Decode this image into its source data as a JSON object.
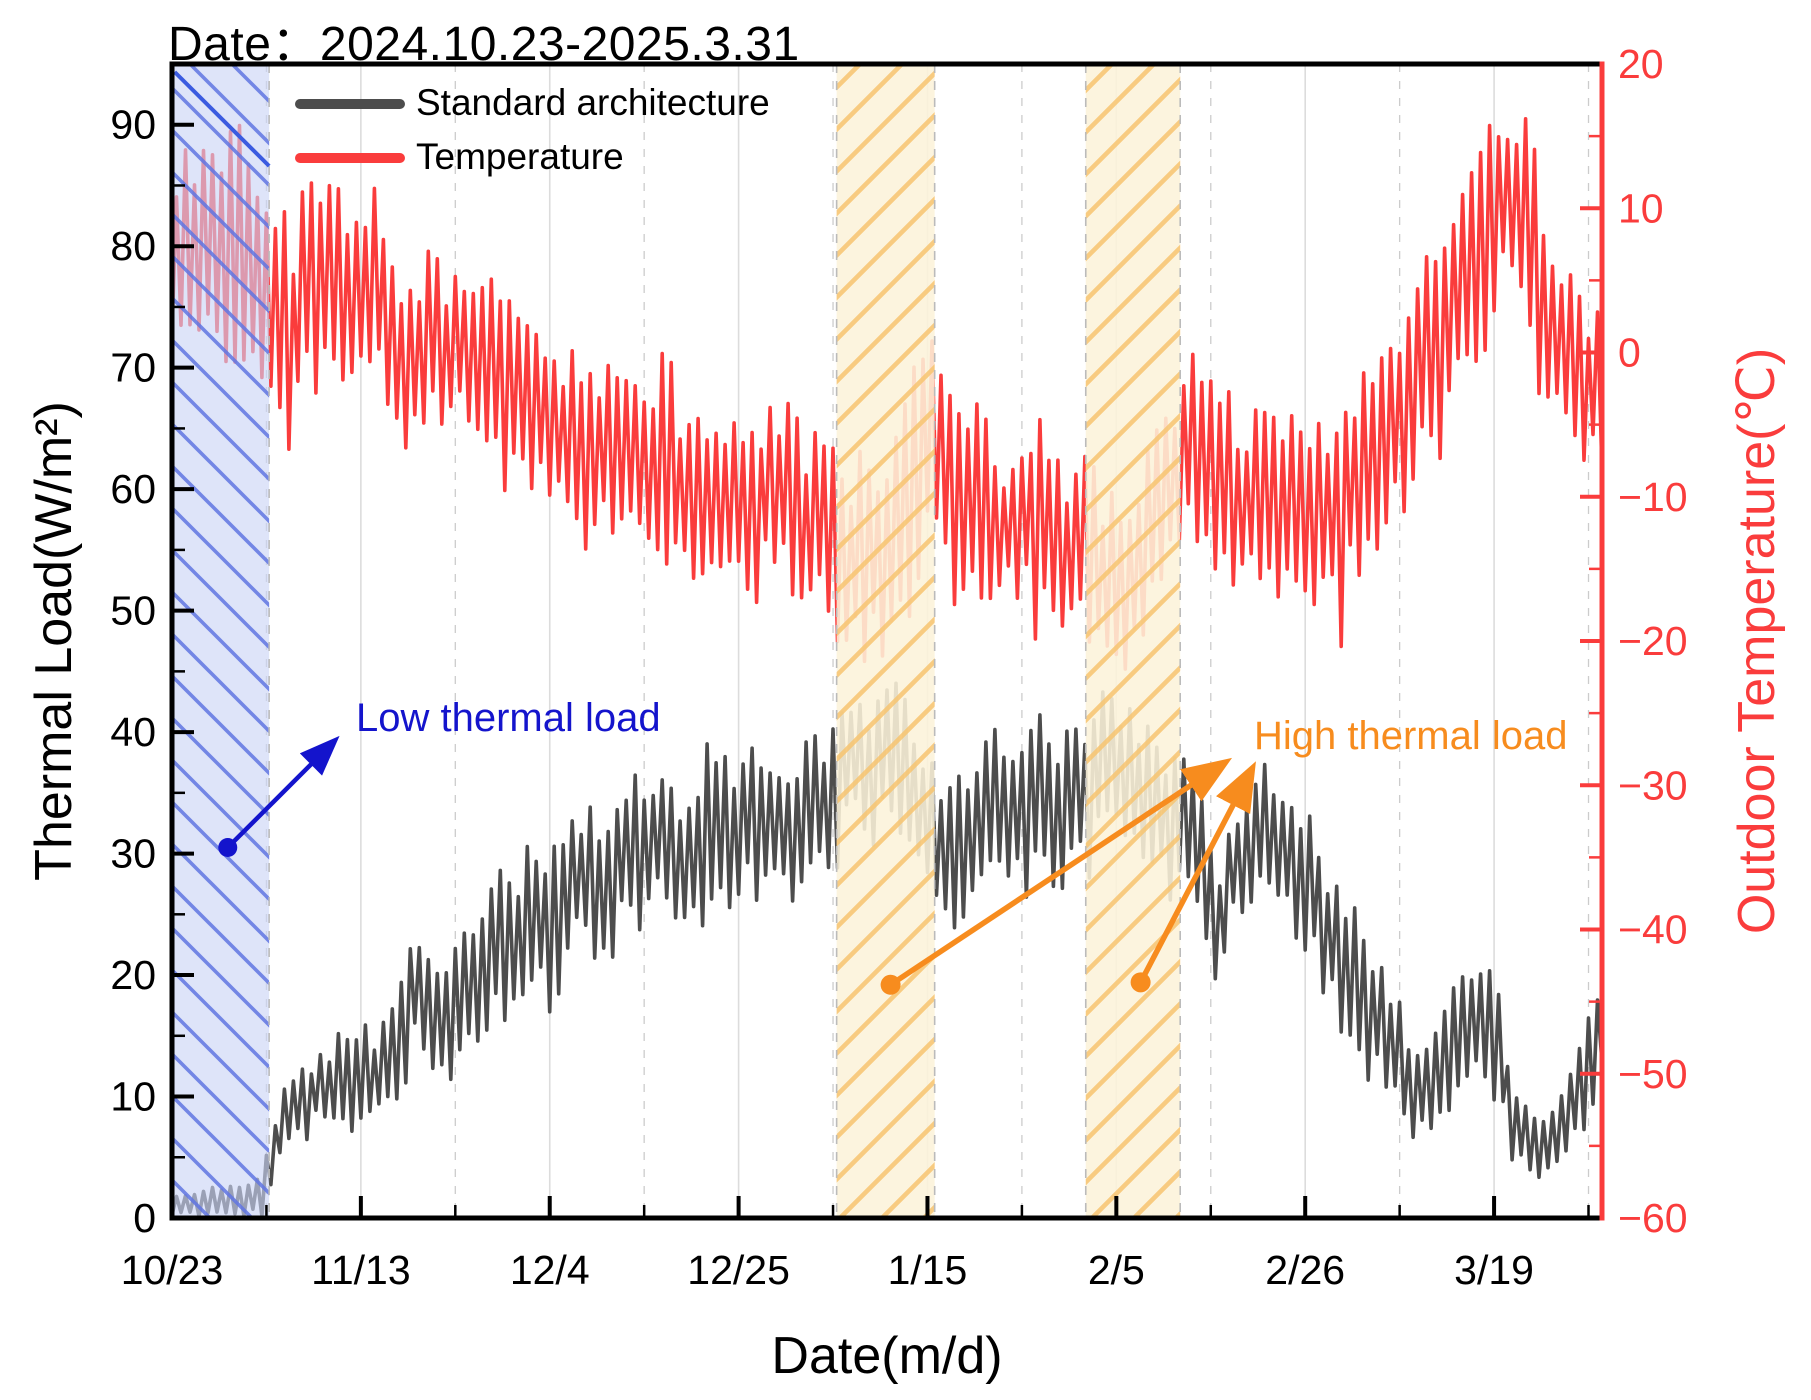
{
  "title": "Date：2024.10.23-2025.3.31",
  "legend": {
    "items": [
      {
        "label": "Standard architecture",
        "color": "#4d4d4d"
      },
      {
        "label": "Temperature",
        "color": "#fa3c3c"
      }
    ]
  },
  "axes": {
    "x": {
      "title": "Date(m/d)",
      "tick_labels": [
        "10/23",
        "11/13",
        "12/4",
        "12/25",
        "1/15",
        "2/5",
        "2/26",
        "3/19"
      ],
      "tick_days": [
        0,
        21,
        42,
        63,
        84,
        105,
        126,
        147
      ],
      "minor_tick_days": [
        10.5,
        31.5,
        52.5,
        73.5,
        94.5,
        115.5,
        136.5,
        157.5
      ],
      "range_days": [
        0,
        159
      ]
    },
    "y_left": {
      "title": "Thermal Load(W/m²)",
      "tick_values": [
        0,
        10,
        20,
        30,
        40,
        50,
        60,
        70,
        80,
        90
      ],
      "minor_tick_values": [
        5,
        15,
        25,
        35,
        45,
        55,
        65,
        75,
        85
      ],
      "range": [
        0,
        95
      ],
      "color": "#000000"
    },
    "y_right": {
      "title": "Outdoor Temperature(℃)",
      "tick_values": [
        20,
        10,
        0,
        -10,
        -20,
        -30,
        -40,
        -50,
        -60
      ],
      "minor_tick_values": [
        15,
        5,
        -5,
        -15,
        -25,
        -35,
        -45,
        -55
      ],
      "range": [
        -60,
        20
      ],
      "color": "#fa3c3c"
    }
  },
  "bands": [
    {
      "name": "low-thermal-load-band",
      "day_start": 0,
      "day_end": 10.8,
      "fill": "#c9d3f6",
      "fill_opacity": 0.62,
      "hatch": "backslash",
      "hatch_color": "#6075e2"
    },
    {
      "name": "high-thermal-load-band-1",
      "day_start": 73.9,
      "day_end": 84.8,
      "fill": "#fcf3da",
      "fill_opacity": 0.88,
      "hatch": "slash",
      "hatch_color": "#f7c470"
    },
    {
      "name": "high-thermal-load-band-2",
      "day_start": 101.6,
      "day_end": 112.1,
      "fill": "#fcf3da",
      "fill_opacity": 0.88,
      "hatch": "slash",
      "hatch_color": "#f7c470"
    }
  ],
  "annotations": {
    "low": {
      "text": "Low thermal load",
      "color": "#1414cc",
      "dot": {
        "day": 6.2,
        "value": 30.5
      },
      "tip": {
        "day": 18.1,
        "value": 39.3
      }
    },
    "high": {
      "text": "High thermal load",
      "color": "#f78c1e",
      "dots": [
        {
          "day": 79.9,
          "value": 19.2
        },
        {
          "day": 107.7,
          "value": 19.4
        }
      ],
      "tips": [
        {
          "day": 117.1,
          "value": 37.5
        },
        {
          "day": 120.1,
          "value": 37.0
        }
      ]
    }
  },
  "chart_data": {
    "type": "line",
    "title": "Date：2024.10.23-2025.3.31",
    "xlabel": "Date(m/d)",
    "ylabel_left": "Thermal Load(W/m²)",
    "ylabel_right": "Outdoor Temperature(℃)",
    "x_unit": "days since 2024-10-23 (0 = 10/23, 159 = 3/31)",
    "xlim_days": [
      0,
      159
    ],
    "ylim_left": [
      0,
      95
    ],
    "ylim_right": [
      -60,
      20
    ],
    "grid": {
      "major": "solid light gray vertical",
      "minor": "dashed light gray vertical"
    },
    "legend_position": "upper left inside, no frame",
    "note": "Both series oscillate daily. control_points are [day, daily_mean, daily_half_amplitude] read from the plot; rendered value swings between mean-amp (night) and mean+amp (day).",
    "series": [
      {
        "name": "Standard architecture",
        "axis": "left",
        "unit": "W/m²",
        "color": "#4d4d4d",
        "control_points": [
          [
            0,
            1,
            0.8
          ],
          [
            4,
            1.3,
            1
          ],
          [
            8,
            1.5,
            1.2
          ],
          [
            10,
            2,
            1.5
          ],
          [
            11,
            5,
            2.5
          ],
          [
            13,
            9,
            2.5
          ],
          [
            16,
            11,
            3
          ],
          [
            19,
            11,
            3.5
          ],
          [
            22,
            12,
            3.5
          ],
          [
            25,
            13.5,
            4
          ],
          [
            27,
            20,
            6
          ],
          [
            29,
            17,
            4.5
          ],
          [
            32,
            17,
            5
          ],
          [
            35,
            20,
            5.5
          ],
          [
            38,
            23,
            5.5
          ],
          [
            41,
            26,
            5.5
          ],
          [
            43,
            24,
            5
          ],
          [
            45,
            28,
            5.5
          ],
          [
            48,
            27,
            5.5
          ],
          [
            51,
            30,
            5.5
          ],
          [
            54,
            31,
            5.5
          ],
          [
            57,
            29,
            5
          ],
          [
            60,
            31,
            5.5
          ],
          [
            63,
            32,
            5.5
          ],
          [
            66,
            33,
            5.5
          ],
          [
            69,
            32,
            5.5
          ],
          [
            72,
            34,
            5.5
          ],
          [
            74,
            36,
            5.5
          ],
          [
            76,
            38,
            5
          ],
          [
            78,
            37.5,
            5.5
          ],
          [
            80,
            37,
            6
          ],
          [
            82,
            35,
            6
          ],
          [
            84,
            33.5,
            6
          ],
          [
            86,
            30,
            5
          ],
          [
            88,
            31,
            5.5
          ],
          [
            91,
            33.5,
            5.5
          ],
          [
            94,
            34,
            5.5
          ],
          [
            97,
            33.5,
            5.5
          ],
          [
            100,
            34,
            5.5
          ],
          [
            102,
            36,
            5.5
          ],
          [
            104,
            38,
            5
          ],
          [
            106,
            37.5,
            5.5
          ],
          [
            108,
            35,
            5.5
          ],
          [
            110,
            34,
            5
          ],
          [
            112,
            33,
            5
          ],
          [
            114,
            31,
            5.5
          ],
          [
            116,
            24,
            4.5
          ],
          [
            118,
            29,
            5
          ],
          [
            121,
            31,
            5
          ],
          [
            124,
            30,
            5
          ],
          [
            127,
            26,
            5
          ],
          [
            130,
            21,
            5
          ],
          [
            133,
            17,
            5
          ],
          [
            136,
            14,
            4.5
          ],
          [
            139,
            10,
            3.5
          ],
          [
            141,
            12,
            4
          ],
          [
            143,
            14,
            4.5
          ],
          [
            146,
            17,
            4.5
          ],
          [
            148,
            13,
            4
          ],
          [
            149,
            8,
            2.5
          ],
          [
            151,
            6.5,
            2.5
          ],
          [
            153,
            6.5,
            2.5
          ],
          [
            155,
            8,
            3
          ],
          [
            157,
            11,
            3.5
          ],
          [
            159,
            16,
            3.5
          ]
        ]
      },
      {
        "name": "Temperature",
        "axis": "right",
        "unit": "°C",
        "color": "#fa3c3c",
        "control_points": [
          [
            0,
            6,
            6
          ],
          [
            4,
            7,
            6
          ],
          [
            8,
            7.5,
            6.5
          ],
          [
            11,
            4,
            5.5
          ],
          [
            14,
            1,
            6
          ],
          [
            17,
            6,
            6
          ],
          [
            20,
            4,
            5
          ],
          [
            23,
            5,
            5.5
          ],
          [
            26,
            -2,
            6
          ],
          [
            29,
            2,
            5
          ],
          [
            32,
            -0.5,
            5
          ],
          [
            35,
            0,
            5.5
          ],
          [
            38,
            -3,
            5
          ],
          [
            41,
            -4,
            5.5
          ],
          [
            44,
            -6,
            5
          ],
          [
            47,
            -7,
            5
          ],
          [
            50,
            -6,
            5
          ],
          [
            53,
            -8,
            5
          ],
          [
            56,
            -9,
            5.5
          ],
          [
            59,
            -10.5,
            5
          ],
          [
            62,
            -9.5,
            5
          ],
          [
            65,
            -11,
            5
          ],
          [
            68,
            -10,
            5.5
          ],
          [
            71,
            -11,
            5.5
          ],
          [
            74,
            -13,
            6
          ],
          [
            77,
            -15.5,
            6
          ],
          [
            80,
            -13.5,
            6.5
          ],
          [
            82,
            -9.5,
            7.5
          ],
          [
            84,
            -7,
            8
          ],
          [
            86,
            -8,
            7
          ],
          [
            88,
            -10,
            6.5
          ],
          [
            91,
            -12,
            6
          ],
          [
            94,
            -12,
            5.5
          ],
          [
            97,
            -11.5,
            5.5
          ],
          [
            100,
            -13,
            5.5
          ],
          [
            103,
            -15,
            6
          ],
          [
            105,
            -16.5,
            6
          ],
          [
            107,
            -15.5,
            5.5
          ],
          [
            109,
            -13,
            6
          ],
          [
            111,
            -9,
            6
          ],
          [
            113,
            -8,
            6
          ],
          [
            115,
            -7,
            6.5
          ],
          [
            118,
            -10,
            5.5
          ],
          [
            121,
            -11,
            5.5
          ],
          [
            124,
            -10,
            6
          ],
          [
            127,
            -12,
            5.5
          ],
          [
            130,
            -11,
            5.5
          ],
          [
            133,
            -8,
            5.5
          ],
          [
            136,
            -5,
            6
          ],
          [
            139,
            -2,
            6
          ],
          [
            142,
            2,
            6.5
          ],
          [
            145,
            7,
            7
          ],
          [
            148,
            11,
            6.5
          ],
          [
            150,
            11,
            6
          ],
          [
            152,
            5,
            6
          ],
          [
            155,
            0,
            5.5
          ],
          [
            157,
            -2,
            5
          ],
          [
            159,
            -3,
            4.5
          ]
        ]
      }
    ]
  }
}
